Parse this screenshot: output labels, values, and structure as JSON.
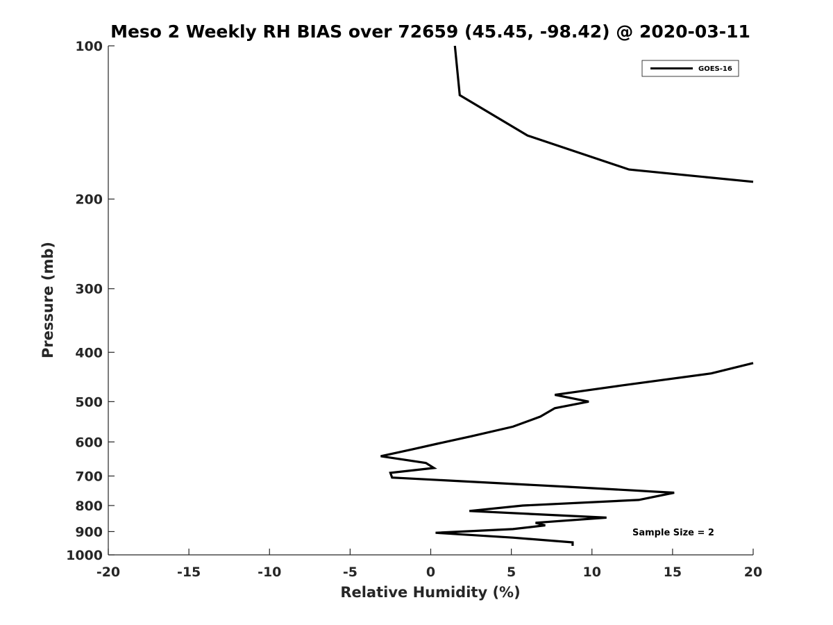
{
  "chart_data": {
    "type": "line",
    "title": "Meso 2 Weekly RH BIAS over 72659 (45.45, -98.42) @ 2020-03-11",
    "xlabel": "Relative Humidity (%)",
    "ylabel": "Pressure (mb)",
    "xlim": [
      -20,
      20
    ],
    "ylim": [
      100,
      1000
    ],
    "yscale": "log",
    "y_reversed": true,
    "xticks": [
      -20,
      -15,
      -10,
      -5,
      0,
      5,
      10,
      15,
      20
    ],
    "xtick_labels": [
      "-20",
      "-15",
      "-10",
      "-5",
      "0",
      "5",
      "10",
      "15",
      "20"
    ],
    "yticks": [
      100,
      200,
      300,
      400,
      500,
      600,
      700,
      800,
      900,
      1000
    ],
    "ytick_labels": [
      "100",
      "200",
      "300",
      "400",
      "500",
      "600",
      "700",
      "800",
      "900",
      "1000"
    ],
    "grid": false,
    "legend_position": "top-right",
    "line_color": "#000000",
    "series": [
      {
        "name": "GOES-16",
        "points": [
          [
            1.5,
            100
          ],
          [
            1.8,
            125
          ],
          [
            6.0,
            150
          ],
          [
            12.3,
            175
          ],
          [
            20.0,
            185
          ],
          [
            null,
            350
          ],
          [
            20.0,
            420
          ],
          [
            17.4,
            440
          ],
          [
            11.8,
            465
          ],
          [
            7.7,
            485
          ],
          [
            9.8,
            500
          ],
          [
            7.7,
            515
          ],
          [
            6.8,
            535
          ],
          [
            5.1,
            560
          ],
          [
            2.5,
            585
          ],
          [
            0.4,
            605
          ],
          [
            -1.1,
            620
          ],
          [
            -3.1,
            640
          ],
          [
            -0.3,
            660
          ],
          [
            0.2,
            675
          ],
          [
            -2.5,
            690
          ],
          [
            -2.4,
            705
          ],
          [
            8.5,
            735
          ],
          [
            15.1,
            755
          ],
          [
            12.9,
            780
          ],
          [
            5.7,
            800
          ],
          [
            2.4,
            820
          ],
          [
            10.9,
            845
          ],
          [
            6.5,
            865
          ],
          [
            7.1,
            875
          ],
          [
            5.1,
            890
          ],
          [
            0.3,
            905
          ],
          [
            5.1,
            925
          ],
          [
            8.8,
            945
          ],
          [
            8.8,
            960
          ]
        ]
      }
    ],
    "annotations": [
      {
        "text": "Sample Size = 2",
        "x": 15,
        "y": 900
      }
    ]
  }
}
